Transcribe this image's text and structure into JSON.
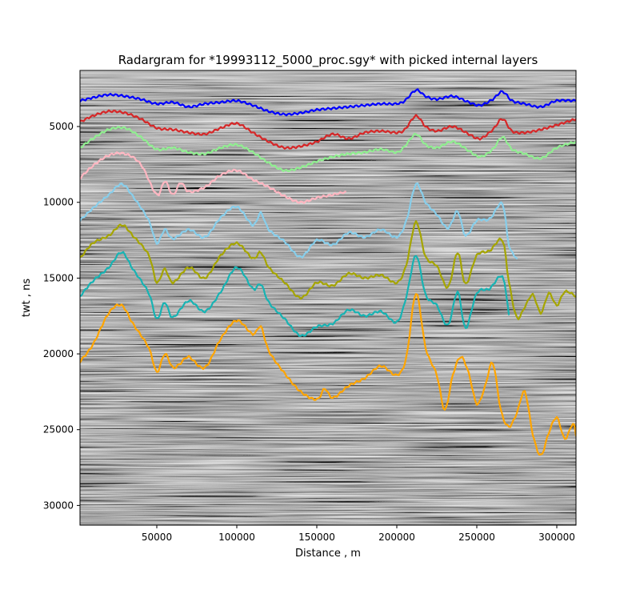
{
  "chart_data": {
    "type": "line",
    "title": "Radargram for *19993112_5000_proc.sgy* with picked internal layers",
    "xlabel": "Distance , m",
    "ylabel": "twt , ns",
    "xlim": [
      2000,
      312000
    ],
    "ylim": [
      31300,
      1300
    ],
    "y_inverted": true,
    "background": "grayscale radargram image (seismic-style reflections)",
    "grid": false,
    "legend": "none",
    "xticks": [
      {
        "value": 50000,
        "label": "50000"
      },
      {
        "value": 100000,
        "label": "100000"
      },
      {
        "value": 150000,
        "label": "150000"
      },
      {
        "value": 200000,
        "label": "200000"
      },
      {
        "value": 250000,
        "label": "250000"
      },
      {
        "value": 300000,
        "label": "300000"
      }
    ],
    "yticks": [
      {
        "value": 5000,
        "label": "5000"
      },
      {
        "value": 10000,
        "label": "10000"
      },
      {
        "value": 15000,
        "label": "15000"
      },
      {
        "value": 20000,
        "label": "20000"
      },
      {
        "value": 25000,
        "label": "25000"
      },
      {
        "value": 30000,
        "label": "30000"
      }
    ],
    "series": [
      {
        "color": "#0000ff",
        "x": [
          2000,
          10000,
          20000,
          30000,
          40000,
          50000,
          60000,
          70000,
          80000,
          90000,
          100000,
          110000,
          120000,
          130000,
          140000,
          150000,
          160000,
          170000,
          180000,
          190000,
          200000,
          205000,
          212000,
          218000,
          225000,
          235000,
          245000,
          252000,
          260000,
          266000,
          272000,
          280000,
          290000,
          300000,
          312000
        ],
        "y": [
          3300,
          3100,
          2900,
          3000,
          3200,
          3500,
          3400,
          3700,
          3500,
          3400,
          3300,
          3600,
          4000,
          4200,
          4100,
          3900,
          3800,
          3700,
          3600,
          3500,
          3500,
          3300,
          2600,
          3000,
          3200,
          3000,
          3400,
          3600,
          3200,
          2700,
          3300,
          3500,
          3700,
          3300,
          3300
        ]
      },
      {
        "color": "#d62728",
        "x": [
          2000,
          10000,
          20000,
          30000,
          40000,
          50000,
          60000,
          70000,
          80000,
          90000,
          100000,
          110000,
          120000,
          130000,
          140000,
          150000,
          160000,
          170000,
          180000,
          190000,
          200000,
          205000,
          212000,
          218000,
          225000,
          235000,
          245000,
          252000,
          260000,
          266000,
          272000,
          280000,
          290000,
          300000,
          312000
        ],
        "y": [
          4700,
          4300,
          4000,
          4100,
          4500,
          5100,
          5200,
          5400,
          5500,
          5100,
          4800,
          5400,
          6000,
          6400,
          6300,
          6000,
          5500,
          5800,
          5400,
          5300,
          5400,
          5200,
          4300,
          5000,
          5300,
          5000,
          5500,
          5800,
          5200,
          4500,
          5300,
          5400,
          5200,
          4900,
          4500
        ]
      },
      {
        "color": "#90ee90",
        "x": [
          2000,
          10000,
          20000,
          30000,
          40000,
          50000,
          60000,
          70000,
          80000,
          90000,
          100000,
          110000,
          120000,
          130000,
          140000,
          150000,
          160000,
          170000,
          180000,
          190000,
          200000,
          205000,
          212000,
          218000,
          225000,
          235000,
          245000,
          252000,
          260000,
          266000,
          272000,
          280000,
          290000,
          300000,
          312000
        ],
        "y": [
          6400,
          5800,
          5200,
          5100,
          5700,
          6500,
          6400,
          6700,
          6800,
          6400,
          6200,
          6700,
          7400,
          7900,
          7700,
          7300,
          7000,
          6800,
          6700,
          6500,
          6700,
          6300,
          5500,
          6200,
          6400,
          6000,
          6600,
          7000,
          6500,
          5700,
          6500,
          6800,
          7100,
          6400,
          6000
        ]
      },
      {
        "color": "#ffb6c1",
        "x": [
          2000,
          10000,
          20000,
          30000,
          40000,
          50000,
          55000,
          60000,
          65000,
          70000,
          80000,
          90000,
          100000,
          110000,
          120000,
          130000,
          140000,
          150000,
          160000,
          168000
        ],
        "y": [
          8400,
          7600,
          6900,
          6800,
          7500,
          9500,
          8600,
          9500,
          8700,
          9300,
          9000,
          8200,
          7900,
          8500,
          9000,
          9600,
          10000,
          9700,
          9500,
          9300
        ]
      },
      {
        "color": "#87ceeb",
        "x": [
          2000,
          10000,
          20000,
          28000,
          35000,
          45000,
          50000,
          55000,
          60000,
          70000,
          80000,
          90000,
          100000,
          110000,
          115000,
          120000,
          130000,
          140000,
          150000,
          160000,
          170000,
          180000,
          190000,
          200000,
          206000,
          212000,
          218000,
          225000,
          232000,
          238000,
          243000,
          250000,
          258000,
          266000,
          270000,
          275000
        ],
        "y": [
          11200,
          10400,
          9500,
          8800,
          9600,
          11200,
          12700,
          11800,
          12400,
          11800,
          12300,
          11000,
          10300,
          11500,
          10700,
          11800,
          12600,
          13600,
          12500,
          12800,
          12000,
          12300,
          11800,
          12300,
          11200,
          8800,
          10000,
          10800,
          11700,
          10600,
          12200,
          11200,
          11100,
          10100,
          12800,
          13700
        ]
      },
      {
        "color": "#a5a500",
        "x": [
          2000,
          10000,
          20000,
          28000,
          35000,
          45000,
          50000,
          55000,
          60000,
          70000,
          80000,
          90000,
          100000,
          110000,
          115000,
          120000,
          130000,
          140000,
          150000,
          160000,
          170000,
          180000,
          190000,
          200000,
          206000,
          212000,
          218000,
          225000,
          232000,
          238000,
          243000,
          250000,
          258000,
          266000,
          270000,
          275000,
          280000,
          285000,
          290000,
          295000,
          300000,
          305000,
          312000
        ],
        "y": [
          13700,
          12700,
          12200,
          11500,
          12200,
          13500,
          15300,
          14400,
          15300,
          14300,
          15000,
          13500,
          12700,
          13700,
          13300,
          14300,
          15300,
          16300,
          15300,
          15500,
          14700,
          15000,
          14800,
          15300,
          14100,
          11300,
          13600,
          14200,
          15600,
          13300,
          15400,
          13500,
          13200,
          12500,
          15200,
          17600,
          16900,
          16100,
          17300,
          16000,
          16800,
          15900,
          16200
        ]
      },
      {
        "color": "#17b3b3",
        "x": [
          2000,
          10000,
          20000,
          28000,
          35000,
          45000,
          50000,
          55000,
          60000,
          70000,
          80000,
          90000,
          100000,
          110000,
          115000,
          120000,
          130000,
          140000,
          150000,
          160000,
          170000,
          180000,
          190000,
          200000,
          206000,
          212000,
          218000,
          225000,
          232000,
          238000,
          243000,
          250000,
          258000,
          266000,
          270000
        ],
        "y": [
          16200,
          15200,
          14300,
          13300,
          14400,
          16000,
          17700,
          16600,
          17600,
          16500,
          17200,
          15900,
          14300,
          15700,
          15400,
          16600,
          17700,
          18800,
          18200,
          18000,
          17100,
          17500,
          17200,
          17900,
          16200,
          13500,
          16100,
          16800,
          18100,
          15900,
          18300,
          16000,
          15700,
          14900,
          17400
        ]
      },
      {
        "color": "#ffa500",
        "x": [
          2000,
          10000,
          20000,
          28000,
          35000,
          45000,
          50000,
          55000,
          60000,
          65000,
          70000,
          80000,
          90000,
          100000,
          110000,
          115000,
          120000,
          130000,
          140000,
          150000,
          155000,
          160000,
          170000,
          180000,
          190000,
          200000,
          206000,
          212000,
          218000,
          225000,
          230000,
          235000,
          240000,
          245000,
          250000,
          255000,
          260000,
          265000,
          270000,
          275000,
          280000,
          285000,
          290000,
          295000,
          300000,
          305000,
          310000,
          312000
        ],
        "y": [
          20500,
          19400,
          17300,
          16800,
          18000,
          19600,
          21200,
          20000,
          20900,
          20600,
          20200,
          20900,
          19000,
          17800,
          18700,
          18200,
          19800,
          21300,
          22500,
          23000,
          22300,
          22900,
          22100,
          21600,
          20800,
          21400,
          20200,
          16000,
          19600,
          21400,
          23700,
          21400,
          20200,
          21300,
          23300,
          22200,
          20600,
          23700,
          24800,
          23900,
          22500,
          25300,
          26700,
          25200,
          24200,
          25600,
          24600,
          25400
        ]
      }
    ]
  }
}
